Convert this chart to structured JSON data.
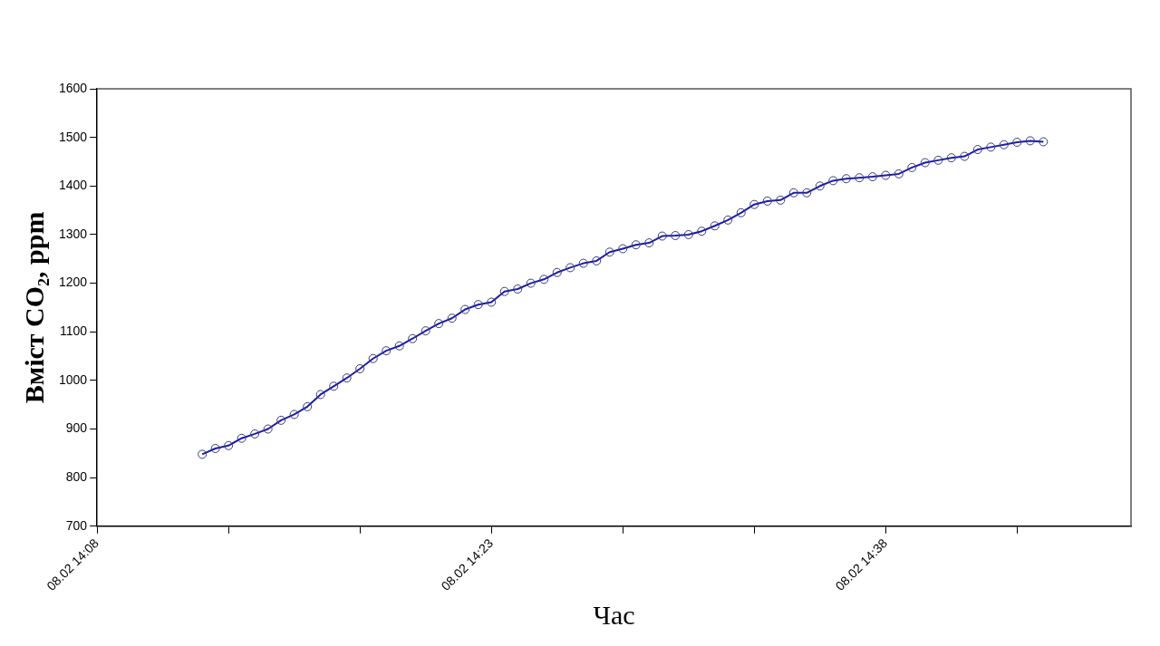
{
  "chart_data": {
    "type": "line",
    "xlabel": "Час",
    "ylabel": "Вміст CO₂, ppm",
    "x": [
      "--02-08T14:12:00",
      "--02-08T14:12:30",
      "--02-08T14:13:00",
      "--02-08T14:13:30",
      "--02-08T14:14:00",
      "--02-08T14:14:30",
      "--02-08T14:15:00",
      "--02-08T14:15:30",
      "--02-08T14:16:00",
      "--02-08T14:16:30",
      "--02-08T14:17:00",
      "--02-08T14:17:30",
      "--02-08T14:18:00",
      "--02-08T14:18:30",
      "--02-08T14:19:00",
      "--02-08T14:19:30",
      "--02-08T14:20:00",
      "--02-08T14:20:30",
      "--02-08T14:21:00",
      "--02-08T14:21:30",
      "--02-08T14:22:00",
      "--02-08T14:22:30",
      "--02-08T14:23:00",
      "--02-08T14:23:30",
      "--02-08T14:24:00",
      "--02-08T14:24:30",
      "--02-08T14:25:00",
      "--02-08T14:25:30",
      "--02-08T14:26:00",
      "--02-08T14:26:30",
      "--02-08T14:27:00",
      "--02-08T14:27:30",
      "--02-08T14:28:00",
      "--02-08T14:28:30",
      "--02-08T14:29:00",
      "--02-08T14:29:30",
      "--02-08T14:30:00",
      "--02-08T14:30:30",
      "--02-08T14:31:00",
      "--02-08T14:31:30",
      "--02-08T14:32:00",
      "--02-08T14:32:30",
      "--02-08T14:33:00",
      "--02-08T14:33:30",
      "--02-08T14:34:00",
      "--02-08T14:34:30",
      "--02-08T14:35:00",
      "--02-08T14:35:30",
      "--02-08T14:36:00",
      "--02-08T14:36:30",
      "--02-08T14:37:00",
      "--02-08T14:37:30",
      "--02-08T14:38:00",
      "--02-08T14:38:30",
      "--02-08T14:39:00",
      "--02-08T14:39:30",
      "--02-08T14:40:00",
      "--02-08T14:40:30",
      "--02-08T14:41:00",
      "--02-08T14:41:30",
      "--02-08T14:42:00",
      "--02-08T14:42:30",
      "--02-08T14:43:00",
      "--02-08T14:43:30",
      "--02-08T14:44:00"
    ],
    "series": [
      {
        "color": "#1c1caa",
        "values": [
          848,
          860,
          866,
          881,
          890,
          900,
          918,
          930,
          946,
          971,
          988,
          1005,
          1024,
          1045,
          1061,
          1071,
          1086,
          1102,
          1117,
          1128,
          1146,
          1156,
          1161,
          1183,
          1188,
          1200,
          1208,
          1222,
          1232,
          1241,
          1246,
          1264,
          1271,
          1279,
          1283,
          1297,
          1298,
          1300,
          1307,
          1318,
          1330,
          1345,
          1362,
          1369,
          1371,
          1386,
          1386,
          1400,
          1411,
          1415,
          1417,
          1419,
          1422,
          1425,
          1438,
          1448,
          1453,
          1458,
          1461,
          1475,
          1480,
          1485,
          1490,
          1493,
          1491
        ]
      }
    ],
    "xlim": [
      "--02-08T14:08:00",
      "--02-08T14:47:20"
    ],
    "xticks": [
      {
        "value": "--02-08T14:08:00",
        "label": "08.02 14:08"
      },
      {
        "value": "--02-08T14:13:00",
        "label": null
      },
      {
        "value": "--02-08T14:18:00",
        "label": null
      },
      {
        "value": "--02-08T14:23:00",
        "label": "08.02 14:23"
      },
      {
        "value": "--02-08T14:28:00",
        "label": null
      },
      {
        "value": "--02-08T14:33:00",
        "label": null
      },
      {
        "value": "--02-08T14:38:00",
        "label": "08.02 14:38"
      },
      {
        "value": "--02-08T14:43:00",
        "label": null
      }
    ],
    "ylim": [
      700,
      1600
    ],
    "yticks": [
      700,
      800,
      900,
      1000,
      1100,
      1200,
      1300,
      1400,
      1500,
      1600
    ],
    "grid": false,
    "legend": false,
    "marker": "circle",
    "line_style": "solid"
  }
}
